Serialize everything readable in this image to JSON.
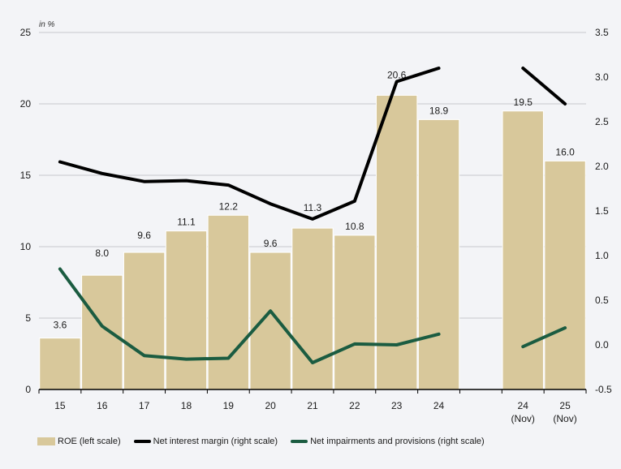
{
  "chart": {
    "unit_label": "in %",
    "colors": {
      "background": "#f3f4f7",
      "bar": "#d8c89b",
      "bar_separator": "#ffffff",
      "nim_line": "#000000",
      "impairments_line": "#1b5c41",
      "gridline": "#c7c9ce",
      "axis": "#000000",
      "text": "#1a1a1a"
    },
    "left_axis": {
      "min": 0,
      "max": 25,
      "tick_values": [
        0,
        5,
        10,
        15,
        20,
        25
      ],
      "grid_values": [
        5,
        10,
        15,
        20,
        25
      ]
    },
    "right_axis": {
      "min": -0.5,
      "max": 3.5,
      "tick_values": [
        -0.5,
        0.0,
        0.5,
        1.0,
        1.5,
        2.0,
        2.5,
        3.0,
        3.5
      ]
    }
  },
  "chart_data": {
    "type": "bar",
    "subtype": "bar + line combo with dual y-axes and a gap before November columns",
    "title": "",
    "xlabel": "",
    "ylabel_left": "in %",
    "left_ylim": [
      0,
      25
    ],
    "right_ylim": [
      -0.5,
      3.5
    ],
    "grid": "horizontal gridlines at left-axis ticks",
    "legend_position": "bottom",
    "categories": [
      "15",
      "16",
      "17",
      "18",
      "19",
      "20",
      "21",
      "22",
      "23",
      "24",
      "24 (Nov)",
      "25 (Nov)"
    ],
    "slot_index": [
      0,
      1,
      2,
      3,
      4,
      5,
      6,
      7,
      8,
      9,
      11,
      12
    ],
    "total_slots": 13,
    "series": [
      {
        "name": "ROE (left scale)",
        "type": "bar",
        "axis": "left",
        "values": [
          3.6,
          8.0,
          9.6,
          11.1,
          12.2,
          9.6,
          11.3,
          10.8,
          20.6,
          18.9,
          19.5,
          16.0
        ],
        "data_labels": true
      },
      {
        "name": "Net interest margin (right scale)",
        "type": "line",
        "axis": "right",
        "values": [
          2.05,
          1.92,
          1.83,
          1.84,
          1.79,
          1.58,
          1.41,
          1.61,
          2.95,
          3.1,
          3.1,
          2.7
        ],
        "segments": [
          [
            0,
            9
          ],
          [
            10,
            11
          ]
        ],
        "data_labels": false
      },
      {
        "name": "Net impairments and provisions (right scale)",
        "type": "line",
        "axis": "right",
        "values": [
          0.85,
          0.21,
          -0.12,
          -0.16,
          -0.15,
          0.38,
          -0.2,
          0.01,
          0.0,
          0.12,
          -0.02,
          0.19
        ],
        "segments": [
          [
            0,
            9
          ],
          [
            10,
            11
          ]
        ],
        "data_labels": false
      }
    ]
  },
  "legend": {
    "items": [
      {
        "label": "ROE (left scale)",
        "swatch": "bar",
        "color": "#d8c89b"
      },
      {
        "label": "Net interest margin (right scale)",
        "swatch": "line",
        "color": "#000000"
      },
      {
        "label": "Net impairments and provisions (right scale)",
        "swatch": "line",
        "color": "#1b5c41"
      }
    ]
  }
}
